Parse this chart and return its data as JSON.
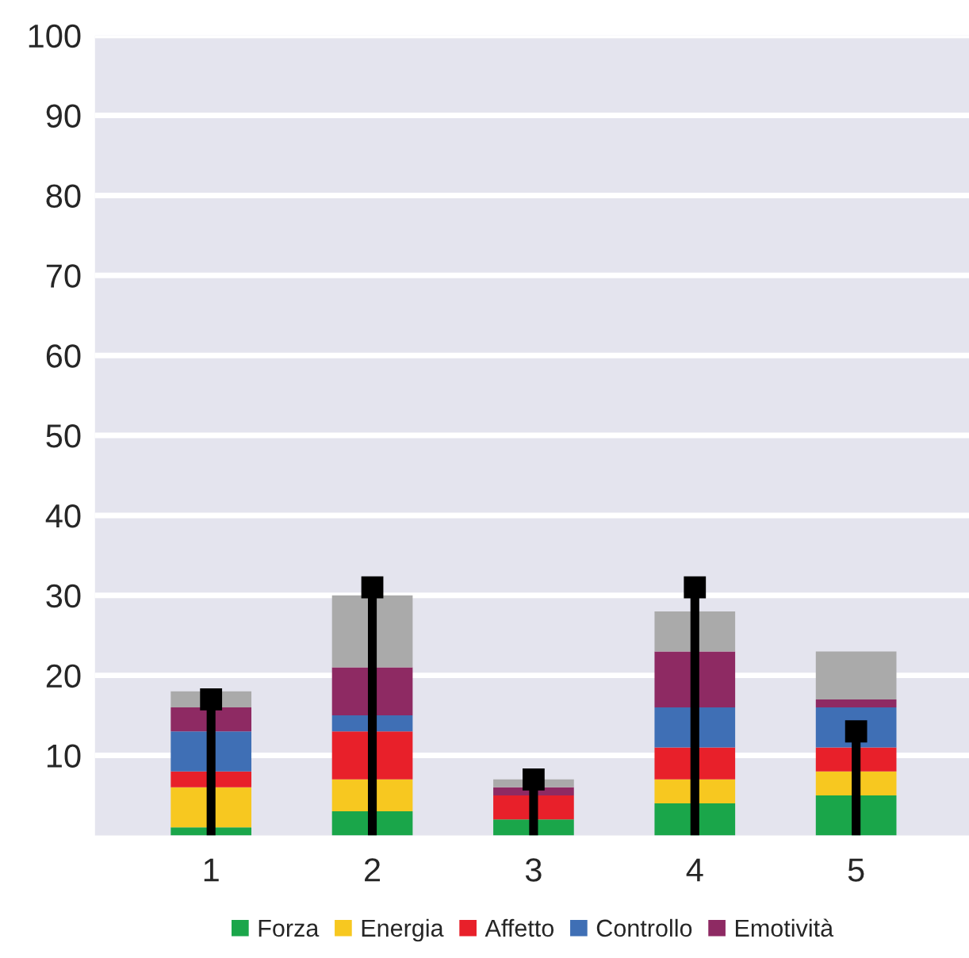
{
  "chart_data": {
    "type": "bar",
    "stacked": true,
    "categories": [
      "1",
      "2",
      "3",
      "4",
      "5"
    ],
    "series": [
      {
        "name": "Forza",
        "color": "#1aa64a",
        "values": [
          1,
          3,
          2,
          4,
          5
        ]
      },
      {
        "name": "Energia",
        "color": "#f7c820",
        "values": [
          5,
          4,
          0,
          3,
          3
        ]
      },
      {
        "name": "Affetto",
        "color": "#e8202a",
        "values": [
          2,
          6,
          3,
          4,
          3
        ]
      },
      {
        "name": "Controllo",
        "color": "#3f6fb5",
        "values": [
          5,
          2,
          0,
          5,
          5
        ]
      },
      {
        "name": "Emotività",
        "color": "#8e2a63",
        "values": [
          3,
          6,
          1,
          7,
          1
        ]
      },
      {
        "color": "#aaaaaa",
        "values": [
          2,
          9,
          1,
          5,
          6
        ]
      },
      {
        "type": "lollipop",
        "color": "#000000",
        "marker": "square",
        "values": [
          17,
          31,
          7,
          31,
          13
        ]
      }
    ],
    "ylim": [
      0,
      100
    ],
    "yticks": [
      10,
      20,
      30,
      40,
      50,
      60,
      70,
      80,
      90,
      100
    ],
    "grid": "y",
    "legend": "bottom"
  }
}
